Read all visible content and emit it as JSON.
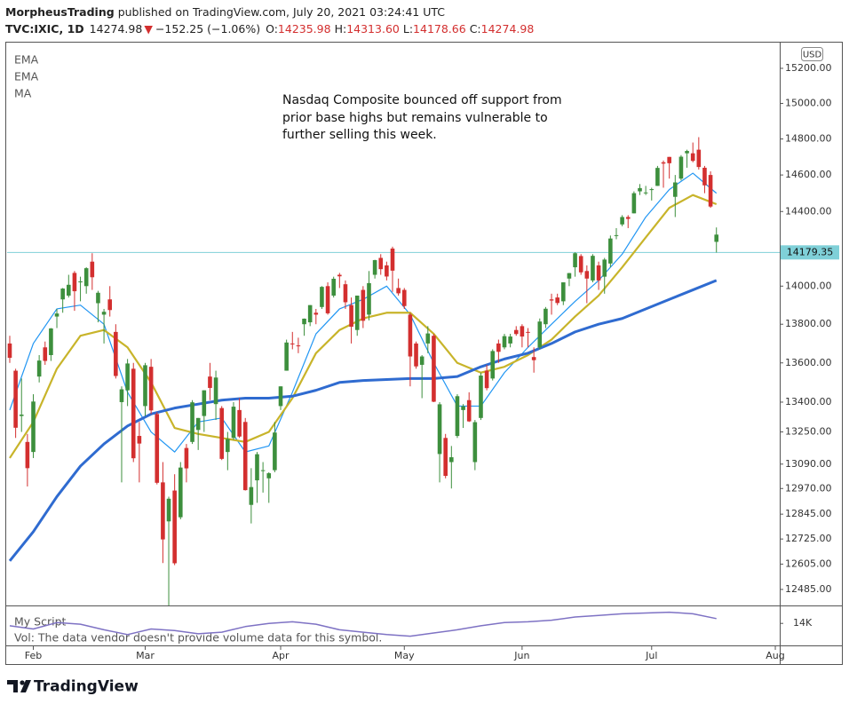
{
  "header": {
    "publisher": "MorpheusTrading",
    "published": "published on TradingView.com, July 20, 2021 03:24:41 UTC",
    "symbol": "TVC:IXIC, 1D",
    "last": "14274.98",
    "arrow": "▼",
    "change": "−152.25 (−1.06%)",
    "quote": [
      {
        "key": "O:",
        "text": "14235.98"
      },
      {
        "key": "H:",
        "text": "14313.60"
      },
      {
        "key": "L:",
        "text": "14178.66"
      },
      {
        "key": "C:",
        "text": "14274.98"
      }
    ]
  },
  "footer": {
    "logo": "TradingView"
  },
  "chart_data": {
    "type": "candlestick",
    "currency": "USD",
    "log": true,
    "grid": false,
    "up_color": "#3d8f3d",
    "down_color": "#d32f2f",
    "annotation": [
      "Nasdaq Composite bounced off support from",
      "prior base highs but remains vulnerable to",
      "further selling this week."
    ],
    "ylim": [
      12418,
      15338
    ],
    "yticks": [
      {
        "value": 12485,
        "label": "12485.00"
      },
      {
        "value": 12605,
        "label": "12605.00"
      },
      {
        "value": 12725,
        "label": "12725.00"
      },
      {
        "value": 12845,
        "label": "12845.00"
      },
      {
        "value": 12970,
        "label": "12970.00"
      },
      {
        "value": 13090,
        "label": "13090.00"
      },
      {
        "value": 13250,
        "label": "13250.00"
      },
      {
        "value": 13400,
        "label": "13400.00"
      },
      {
        "value": 13600,
        "label": "13600.00"
      },
      {
        "value": 13800,
        "label": "13800.00"
      },
      {
        "value": 14000,
        "label": "14000.00"
      },
      {
        "value": 14400,
        "label": "14400.00"
      },
      {
        "value": 14600,
        "label": "14600.00"
      },
      {
        "value": 14800,
        "label": "14800.00"
      },
      {
        "value": 15000,
        "label": "15000.00"
      },
      {
        "value": 15200,
        "label": "15200.00"
      }
    ],
    "xlim": [
      -0.45,
      130.75
    ],
    "xticks": [
      {
        "value": 4,
        "label": "Feb"
      },
      {
        "value": 23,
        "label": "Mar"
      },
      {
        "value": 46,
        "label": "Apr"
      },
      {
        "value": 67,
        "label": "May"
      },
      {
        "value": 87,
        "label": "Jun"
      },
      {
        "value": 109,
        "label": "Jul"
      },
      {
        "value": 130,
        "label": "Aug"
      }
    ],
    "hline": {
      "value": 14179.35,
      "color": "#7fd0d8"
    },
    "open": [
      13700,
      13560,
      13330,
      13200,
      13150,
      13530,
      13680,
      13640,
      13840,
      13930,
      13950,
      14070,
      14020,
      14000,
      14130,
      13910,
      13850,
      13930,
      13760,
      13400,
      13460,
      13570,
      13230,
      13380,
      13580,
      13340,
      13000,
      12810,
      12960,
      12830,
      13170,
      13200,
      13260,
      13330,
      13530,
      13390,
      13370,
      13150,
      13220,
      13360,
      13300,
      12890,
      13010,
      13060,
      13020,
      13060,
      13380,
      13560,
      13700,
      13690,
      13800,
      13810,
      13860,
      13890,
      14000,
      13950,
      14060,
      14010,
      13900,
      13770,
      13980,
      13850,
      14060,
      14150,
      14110,
      14200,
      13990,
      13980,
      13850,
      13700,
      13590,
      13700,
      13740,
      13140,
      13220,
      13100,
      13230,
      13360,
      13410,
      13100,
      13320,
      13560,
      13520,
      13700,
      13680,
      13700,
      13770,
      13790,
      13760,
      13630,
      13680,
      13800,
      13930,
      13940,
      13920,
      14040,
      14100,
      14160,
      14080,
      14030,
      14110,
      14050,
      14120,
      14270,
      14330,
      14370,
      14390,
      14510,
      14500,
      14520,
      14540,
      14670,
      14700,
      14480,
      14580,
      14720,
      14720,
      14740,
      14640,
      14600,
      14235.98
    ],
    "high": [
      13740,
      13570,
      13520,
      13240,
      13440,
      13640,
      13710,
      13780,
      13880,
      13990,
      14060,
      14080,
      14050,
      14100,
      14175,
      13975,
      13880,
      14000,
      13800,
      13480,
      13620,
      13600,
      13300,
      13600,
      13620,
      13350,
      13100,
      12930,
      13040,
      13100,
      13190,
      13410,
      13320,
      13460,
      13600,
      13560,
      13380,
      13250,
      13400,
      13420,
      13320,
      13070,
      13150,
      13100,
      13050,
      13300,
      13480,
      13720,
      13760,
      13730,
      13830,
      13900,
      13880,
      14000,
      14020,
      14050,
      14070,
      14030,
      13940,
      13950,
      14000,
      14080,
      14140,
      14170,
      14130,
      14210,
      14040,
      13990,
      13860,
      13710,
      13640,
      13790,
      13750,
      13400,
      13240,
      13180,
      13440,
      13390,
      13450,
      13310,
      13550,
      13590,
      13670,
      13720,
      13750,
      13750,
      13790,
      13800,
      13780,
      13680,
      13830,
      13890,
      13960,
      13960,
      14020,
      14070,
      14180,
      14170,
      14110,
      14170,
      14130,
      14150,
      14270,
      14310,
      14380,
      14380,
      14510,
      14550,
      14540,
      14530,
      14650,
      14680,
      14700,
      14600,
      14710,
      14740,
      14780,
      14810,
      14650,
      14620,
      14313.6
    ],
    "low": [
      13600,
      13220,
      13250,
      12980,
      13120,
      13500,
      13590,
      13610,
      13780,
      13860,
      13940,
      13870,
      13920,
      13960,
      13980,
      13810,
      13700,
      13840,
      13520,
      13000,
      13380,
      13100,
      13000,
      13330,
      13340,
      12990,
      12610,
      12400,
      12600,
      12820,
      13000,
      13190,
      13160,
      13250,
      13410,
      13310,
      13110,
      13060,
      13210,
      13220,
      12960,
      12800,
      12900,
      12950,
      12900,
      13050,
      13360,
      13560,
      13670,
      13650,
      13740,
      13790,
      13800,
      13880,
      13850,
      13940,
      13990,
      13880,
      13700,
      13740,
      13780,
      13820,
      14040,
      14060,
      14030,
      13970,
      13950,
      13880,
      13480,
      13570,
      13420,
      13650,
      13400,
      13000,
      13020,
      12970,
      13220,
      13270,
      13300,
      13060,
      13310,
      13460,
      13510,
      13600,
      13670,
      13680,
      13740,
      13680,
      13680,
      13550,
      13670,
      13780,
      13850,
      13900,
      13900,
      14000,
      14050,
      14060,
      13910,
      14020,
      13980,
      13960,
      14100,
      14250,
      14320,
      14310,
      14390,
      14490,
      14490,
      14460,
      14540,
      14530,
      14580,
      14370,
      14570,
      14640,
      14670,
      14630,
      14500,
      14420,
      14178.66
    ],
    "close": [
      13626,
      13271,
      13337,
      13070,
      13403,
      13612,
      13610,
      13778,
      13856,
      13987,
      14007,
      13973,
      14025,
      14095,
      14047,
      13965,
      13865,
      13874,
      13533,
      13465,
      13597,
      13119,
      13192,
      13588,
      13358,
      12998,
      12723,
      12920,
      12609,
      13073,
      13069,
      13399,
      13320,
      13460,
      13472,
      13525,
      13116,
      13215,
      13377,
      13227,
      12962,
      12977,
      13139,
      13060,
      13045,
      13247,
      13480,
      13705,
      13698,
      13688,
      13829,
      13900,
      13850,
      13996,
      13857,
      14039,
      14052,
      13915,
      13787,
      13950,
      13818,
      14016,
      14138,
      14090,
      14051,
      14082,
      13962,
      13895,
      13633,
      13582,
      13633,
      13752,
      13402,
      13389,
      13032,
      13124,
      13430,
      13379,
      13303,
      13299,
      13535,
      13471,
      13661,
      13657,
      13738,
      13736,
      13749,
      13736,
      13756,
      13614,
      13814,
      13881,
      13924,
      13911,
      14020,
      14069,
      14175,
      14073,
      14040,
      14161,
      14030,
      14141,
      14254,
      14272,
      14370,
      14360,
      14500,
      14528,
      14504,
      14522,
      14639,
      14663,
      14665,
      14559,
      14701,
      14733,
      14678,
      14644,
      14543,
      14427,
      14274.98
    ],
    "series": [
      {
        "name": "EMA",
        "color": "#2196f3",
        "width": 1.2,
        "x": [
          0,
          4,
          8,
          12,
          16,
          20,
          24,
          28,
          32,
          36,
          40,
          44,
          48,
          52,
          56,
          60,
          64,
          68,
          72,
          76,
          80,
          84,
          88,
          92,
          96,
          100,
          104,
          108,
          112,
          116,
          120
        ],
        "values": [
          13360,
          13700,
          13880,
          13900,
          13800,
          13450,
          13250,
          13150,
          13300,
          13320,
          13150,
          13180,
          13450,
          13750,
          13880,
          13930,
          14000,
          13850,
          13600,
          13380,
          13380,
          13550,
          13680,
          13800,
          13920,
          14030,
          14170,
          14370,
          14520,
          14610,
          14500
        ]
      },
      {
        "name": "EMA",
        "color": "#c8b42a",
        "width": 2.2,
        "x": [
          0,
          4,
          8,
          12,
          16,
          20,
          24,
          28,
          32,
          36,
          40,
          44,
          48,
          52,
          56,
          60,
          64,
          68,
          72,
          76,
          80,
          84,
          88,
          92,
          96,
          100,
          104,
          108,
          112,
          116,
          120
        ],
        "values": [
          13120,
          13300,
          13570,
          13740,
          13770,
          13680,
          13500,
          13270,
          13240,
          13220,
          13200,
          13250,
          13420,
          13650,
          13770,
          13830,
          13860,
          13860,
          13750,
          13600,
          13550,
          13580,
          13640,
          13720,
          13840,
          13950,
          14100,
          14260,
          14420,
          14490,
          14440
        ]
      },
      {
        "name": "MA",
        "color": "#2f6bd0",
        "width": 3,
        "x": [
          0,
          4,
          8,
          12,
          16,
          20,
          24,
          28,
          32,
          36,
          40,
          44,
          48,
          52,
          56,
          60,
          64,
          68,
          72,
          76,
          80,
          84,
          88,
          92,
          96,
          100,
          104,
          108,
          112,
          116,
          120
        ],
        "values": [
          12620,
          12760,
          12930,
          13080,
          13190,
          13280,
          13340,
          13370,
          13390,
          13410,
          13420,
          13420,
          13430,
          13460,
          13500,
          13510,
          13515,
          13520,
          13520,
          13530,
          13580,
          13620,
          13650,
          13700,
          13760,
          13800,
          13830,
          13880,
          13930,
          13980,
          14030
        ]
      }
    ],
    "indicator": {
      "name": "My Script",
      "color": "#7e72c4",
      "ylim": [
        12900,
        14900
      ],
      "yticks": [
        {
          "value": 14000,
          "label": "14K"
        }
      ],
      "note": "Vol: The data vendor doesn't provide volume data for this symbol.",
      "x": [
        0,
        4,
        8,
        12,
        16,
        20,
        24,
        28,
        32,
        36,
        40,
        44,
        48,
        52,
        56,
        60,
        64,
        68,
        72,
        76,
        80,
        84,
        88,
        92,
        96,
        100,
        104,
        108,
        112,
        116,
        120
      ],
      "values": [
        13850,
        13650,
        14050,
        13950,
        13600,
        13300,
        13650,
        13550,
        13350,
        13450,
        13800,
        14000,
        14100,
        13950,
        13600,
        13450,
        13300,
        13200,
        13400,
        13600,
        13850,
        14050,
        14100,
        14200,
        14400,
        14500,
        14600,
        14650,
        14700,
        14600,
        14300
      ]
    }
  }
}
